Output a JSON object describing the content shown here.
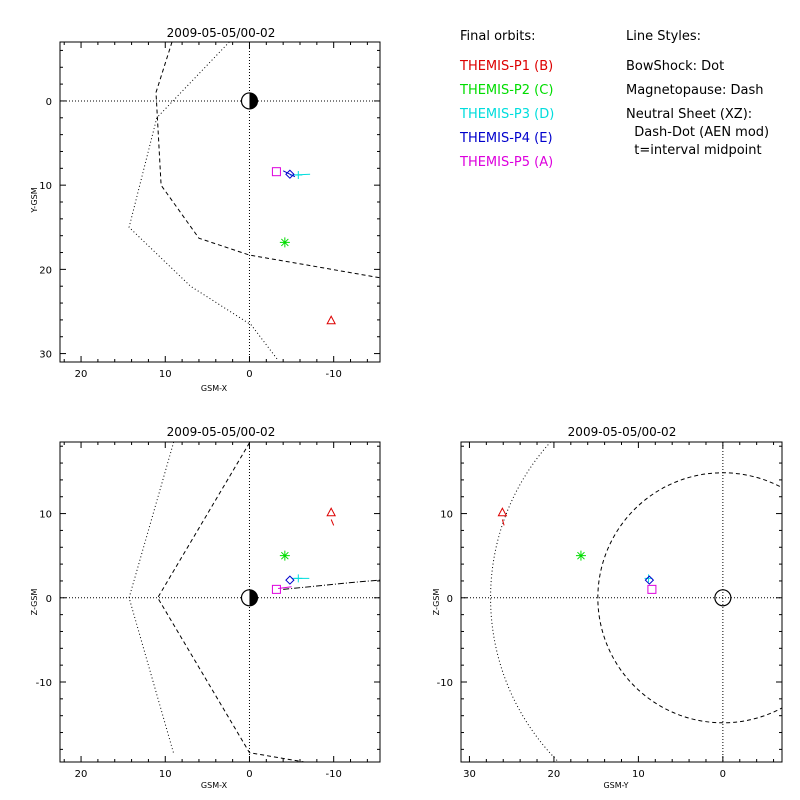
{
  "legend": {
    "orbits_title": "Final orbits:",
    "orbits": [
      {
        "label": "THEMIS-P1 (B)",
        "color": "#dd0000"
      },
      {
        "label": "THEMIS-P2 (C)",
        "color": "#00dd00"
      },
      {
        "label": "THEMIS-P3 (D)",
        "color": "#00dddd"
      },
      {
        "label": "THEMIS-P4 (E)",
        "color": "#0000cc"
      },
      {
        "label": "THEMIS-P5 (A)",
        "color": "#dd00dd"
      }
    ],
    "styles_title": "Line Styles:",
    "styles": [
      "BowShock: Dot",
      "Magnetopause: Dash",
      "Neutral Sheet (XZ):",
      "  Dash-Dot (AEN mod)",
      "  t=interval midpoint"
    ]
  },
  "chart_data": [
    {
      "type": "scatter",
      "title": "2009-05-05/00-02",
      "xlabel": "GSM-X",
      "ylabel": "Y-GSM",
      "xlim": [
        22.5,
        -15.5
      ],
      "ylim": [
        -7,
        31
      ],
      "y_inverted": true,
      "xticks": [
        20,
        10,
        0,
        -10
      ],
      "yticks": [
        0,
        10,
        20,
        30
      ],
      "ylabel_rotation": "vertical",
      "points": [
        {
          "probe": "THEMIS-P1",
          "marker": "triangle",
          "x": -9.7,
          "y": 26.1,
          "color": "#dd0000"
        },
        {
          "probe": "THEMIS-P2",
          "marker": "asterisk",
          "x": -4.2,
          "y": 16.8,
          "color": "#00dd00"
        },
        {
          "probe": "THEMIS-P3",
          "marker": "plus",
          "x": -5.8,
          "y": 8.8,
          "color": "#00dddd"
        },
        {
          "probe": "THEMIS-P4",
          "marker": "diamond",
          "x": -4.8,
          "y": 8.7,
          "color": "#0000cc"
        },
        {
          "probe": "THEMIS-P5",
          "marker": "square",
          "x": -3.2,
          "y": 8.4,
          "color": "#dd00dd"
        }
      ],
      "tails": [
        {
          "color": "#00dddd",
          "points": [
            [
              -4.8,
              8.8
            ],
            [
              -7.2,
              8.7
            ]
          ]
        },
        {
          "color": "#0000cc",
          "points": [
            [
              -4.0,
              8.3
            ],
            [
              -5.4,
              9.0
            ]
          ]
        }
      ],
      "earth": {
        "x": 0,
        "y": 0,
        "style": "half-dark"
      },
      "bowshock": [
        [
          2.4,
          -7
        ],
        [
          11,
          2
        ],
        [
          14.3,
          15
        ],
        [
          7,
          22
        ],
        [
          -0.2,
          26.6
        ],
        [
          -3.4,
          30.8
        ]
      ],
      "magnetopause": [
        [
          9.2,
          -7
        ],
        [
          11.1,
          -1
        ],
        [
          10.5,
          10
        ],
        [
          6,
          16.3
        ],
        [
          0,
          18.3
        ],
        [
          -7.5,
          19.6
        ],
        [
          -15.5,
          21
        ]
      ]
    },
    {
      "type": "scatter",
      "title": "2009-05-05/00-02",
      "xlabel": "GSM-X",
      "ylabel": "Z-GSM",
      "xlim": [
        22.5,
        -15.5
      ],
      "ylim": [
        -19.5,
        18.5
      ],
      "xticks": [
        20,
        10,
        0,
        -10
      ],
      "yticks": [
        -10,
        0,
        10
      ],
      "points": [
        {
          "probe": "THEMIS-P1",
          "marker": "triangle",
          "x": -9.7,
          "y": 10.1,
          "color": "#dd0000"
        },
        {
          "probe": "THEMIS-P2",
          "marker": "asterisk",
          "x": -4.2,
          "y": 5.0,
          "color": "#00dd00"
        },
        {
          "probe": "THEMIS-P3",
          "marker": "plus",
          "x": -5.8,
          "y": 2.3,
          "color": "#00dddd"
        },
        {
          "probe": "THEMIS-P4",
          "marker": "diamond",
          "x": -4.8,
          "y": 2.1,
          "color": "#0000cc"
        },
        {
          "probe": "THEMIS-P5",
          "marker": "square",
          "x": -3.2,
          "y": 1.0,
          "color": "#dd00dd"
        }
      ],
      "tails": [
        {
          "color": "#dd0000",
          "points": [
            [
              -9.7,
              9.3
            ],
            [
              -10.0,
              8.6
            ]
          ]
        },
        {
          "color": "#00dddd",
          "points": [
            [
              -5.0,
              2.3
            ],
            [
              -7.1,
              2.3
            ]
          ]
        },
        {
          "color": "#dd00dd",
          "points": [
            [
              -3.4,
              1.1
            ],
            [
              -5.0,
              1.3
            ]
          ]
        }
      ],
      "earth": {
        "x": 0,
        "y": 0,
        "style": "half-dark"
      },
      "bowshock": [
        [
          9.0,
          18.5
        ],
        [
          14.3,
          0
        ],
        [
          9.0,
          -18.5
        ]
      ],
      "magnetopause": [
        [
          0,
          18.4
        ],
        [
          10.9,
          0
        ],
        [
          0,
          -18.4
        ],
        [
          -6.5,
          -19.5
        ]
      ],
      "neutral_sheet": [
        [
          -4.0,
          1.0
        ],
        [
          -8.0,
          1.4
        ],
        [
          -12.0,
          1.8
        ],
        [
          -15.5,
          2.1
        ]
      ]
    },
    {
      "type": "scatter",
      "title": "2009-05-05/00-02",
      "xlabel": "GSM-Y",
      "ylabel": "Z-GSM",
      "xlim": [
        31,
        -7
      ],
      "ylim": [
        -19.5,
        18.5
      ],
      "xticks": [
        30,
        20,
        10,
        0
      ],
      "yticks": [
        -10,
        0,
        10
      ],
      "points": [
        {
          "probe": "THEMIS-P1",
          "marker": "triangle",
          "x": 26.1,
          "y": 10.1,
          "color": "#dd0000"
        },
        {
          "probe": "THEMIS-P2",
          "marker": "asterisk",
          "x": 16.8,
          "y": 5.0,
          "color": "#00dd00"
        },
        {
          "probe": "THEMIS-P3",
          "marker": "plus",
          "x": 8.8,
          "y": 2.3,
          "color": "#00dddd"
        },
        {
          "probe": "THEMIS-P4",
          "marker": "diamond",
          "x": 8.7,
          "y": 2.1,
          "color": "#0000cc"
        },
        {
          "probe": "THEMIS-P5",
          "marker": "square",
          "x": 8.4,
          "y": 1.0,
          "color": "#dd00dd"
        }
      ],
      "tails": [
        {
          "color": "#dd0000",
          "points": [
            [
              26.1,
              9.3
            ],
            [
              25.9,
              8.6
            ]
          ]
        }
      ],
      "earth": {
        "x": 0,
        "y": 0,
        "style": "open"
      },
      "bowshock": {
        "center": [
          0,
          0
        ],
        "radius": 27.5
      },
      "magnetopause": {
        "center": [
          0,
          0
        ],
        "radius": 14.8
      }
    }
  ]
}
